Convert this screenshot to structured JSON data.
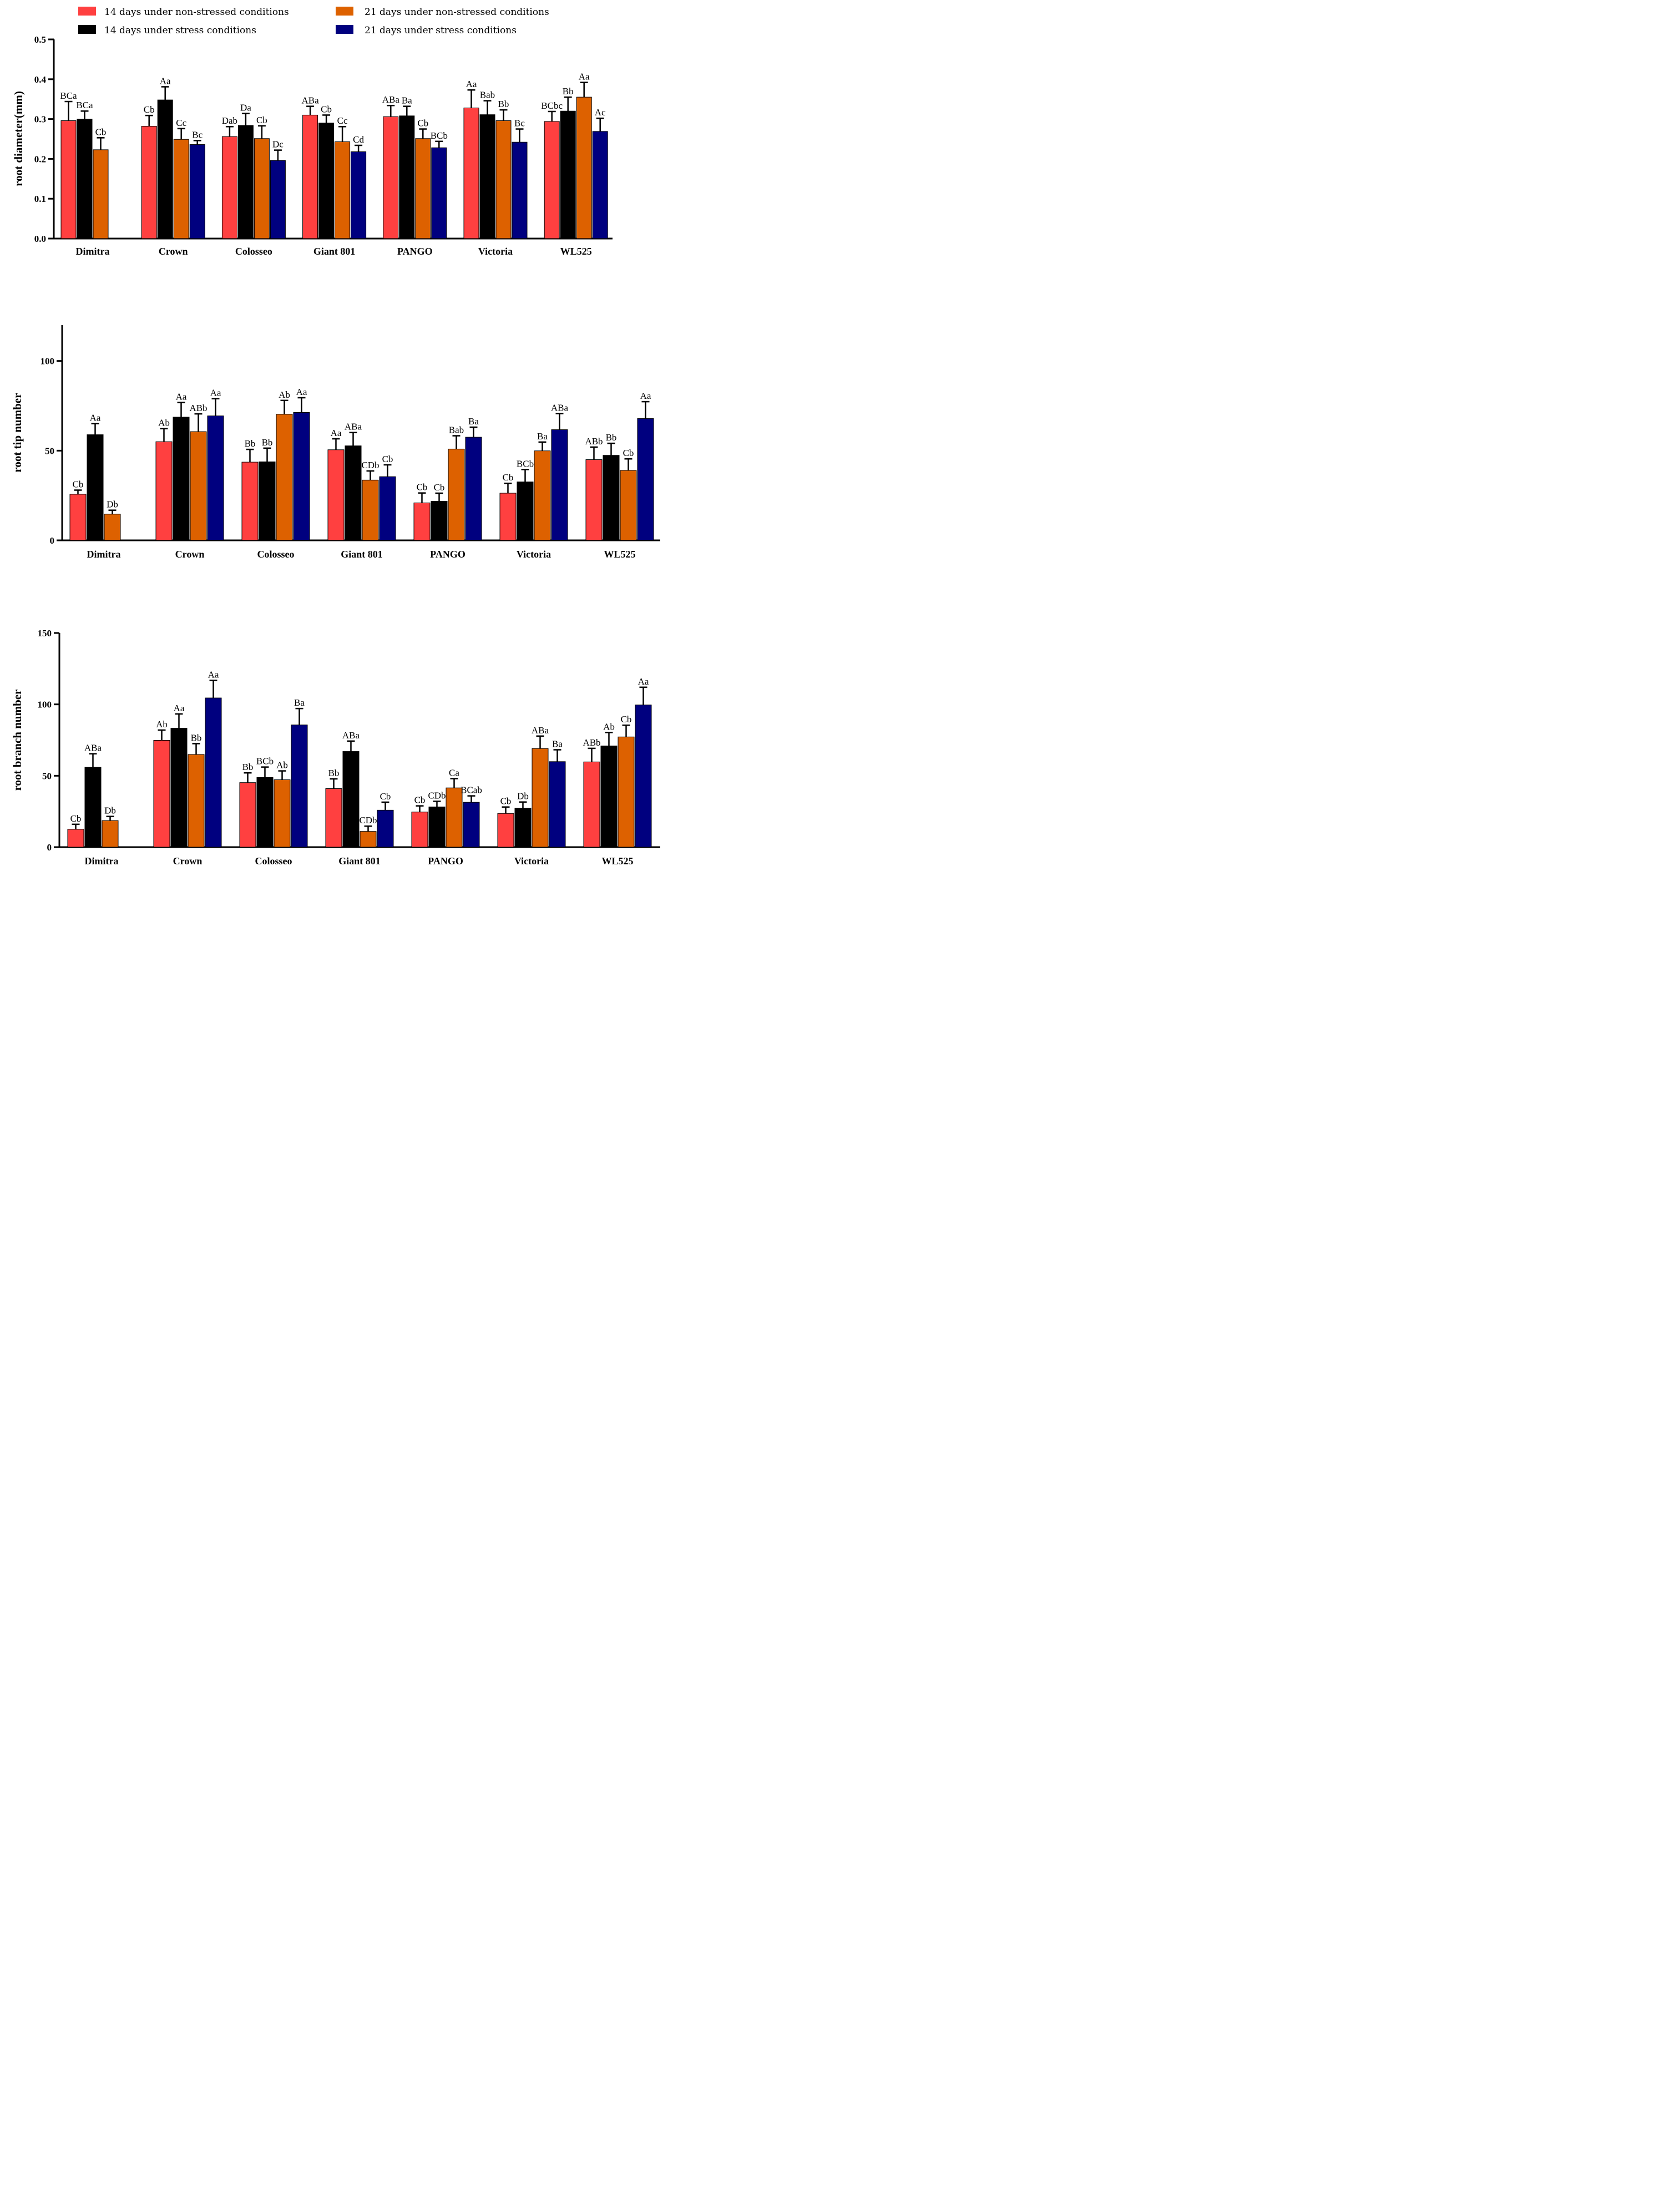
{
  "legend": [
    {
      "label": "14 days under non-stressed conditions",
      "color": "#ff4040"
    },
    {
      "label": "21 days under non-stressed conditions",
      "color": "#dd6100"
    },
    {
      "label": "14 days under stress conditions",
      "color": "#000000"
    },
    {
      "label": "21 days under stress conditions",
      "color": "#00007f"
    }
  ],
  "chart_data": [
    {
      "type": "bar",
      "title": "",
      "xlabel": "",
      "ylabel": "root diameter(mm)",
      "ylim": [
        0,
        0.5
      ],
      "yticks": [
        "0.0",
        "0.1",
        "0.2",
        "0.3",
        "0.4",
        "0.5"
      ],
      "categories": [
        "Dimitra",
        "Crown",
        "Colosseo",
        "Giant 801",
        "PANGO",
        "Victoria",
        "WL525"
      ],
      "series": [
        {
          "name": "14 days under non-stressed conditions",
          "color": "#ff4040",
          "values": [
            0.296,
            0.282,
            0.256,
            0.31,
            0.306,
            0.328,
            0.294
          ],
          "errors": [
            0.048,
            0.027,
            0.025,
            0.022,
            0.028,
            0.045,
            0.025
          ],
          "labels": [
            "BCa",
            "Cb",
            "Dab",
            "ABa",
            "ABa",
            "Aa",
            "BCbc"
          ]
        },
        {
          "name": "14 days under stress conditions",
          "color": "#000000",
          "values": [
            0.3,
            0.348,
            0.284,
            0.29,
            0.308,
            0.311,
            0.32
          ],
          "errors": [
            0.02,
            0.033,
            0.03,
            0.02,
            0.024,
            0.035,
            0.035
          ],
          "labels": [
            "BCa",
            "Aa",
            "Da",
            "Cb",
            "Ba",
            "Bab",
            "Bb"
          ]
        },
        {
          "name": "21 days under non-stressed conditions",
          "color": "#dd6100",
          "values": [
            0.223,
            0.249,
            0.251,
            0.243,
            0.251,
            0.296,
            0.355
          ],
          "errors": [
            0.03,
            0.027,
            0.032,
            0.038,
            0.024,
            0.027,
            0.037
          ],
          "labels": [
            "Cb",
            "Cc",
            "Cb",
            "Cc",
            "Cb",
            "Bb",
            "Aa"
          ]
        },
        {
          "name": "21 days under stress conditions",
          "color": "#00007f",
          "values": [
            null,
            0.236,
            0.196,
            0.218,
            0.228,
            0.242,
            0.269
          ],
          "errors": [
            null,
            0.01,
            0.026,
            0.016,
            0.016,
            0.033,
            0.033
          ],
          "labels": [
            "",
            "Bc",
            "Dc",
            "Cd",
            "BCb",
            "Bc",
            "Ac"
          ]
        }
      ]
    },
    {
      "type": "bar",
      "title": "",
      "xlabel": "",
      "ylabel": "root tip number",
      "ylim": [
        0,
        120
      ],
      "yticks": [
        "0",
        "50",
        "100"
      ],
      "categories": [
        "Dimitra",
        "Crown",
        "Colosseo",
        "Giant 801",
        "PANGO",
        "Victoria",
        "WL525"
      ],
      "series": [
        {
          "name": "14 days under non-stressed conditions",
          "color": "#ff4040",
          "values": [
            25.7,
            55,
            43.6,
            50.5,
            20.9,
            26.3,
            45
          ],
          "errors": [
            2.3,
            7.3,
            7.1,
            6.1,
            5.5,
            5.5,
            7
          ],
          "labels": [
            "Cb",
            "Ab",
            "Bb",
            "Aa",
            "Cb",
            "Cb",
            "ABb"
          ]
        },
        {
          "name": "14 days under stress conditions",
          "color": "#000000",
          "values": [
            58.9,
            68.7,
            43.8,
            52.7,
            21.8,
            32.6,
            47.4
          ],
          "errors": [
            6.2,
            8.2,
            7.6,
            7.4,
            4.5,
            6.9,
            6.7
          ],
          "labels": [
            "Aa",
            "Aa",
            "Bb",
            "ABa",
            "Cb",
            "BCb",
            "Bb"
          ]
        },
        {
          "name": "21 days under non-stressed conditions",
          "color": "#dd6100",
          "values": [
            14.6,
            60.6,
            70.3,
            33.6,
            50.9,
            49.9,
            39
          ],
          "errors": [
            2.2,
            9.9,
            7.7,
            5.1,
            7.4,
            4.9,
            6.4
          ],
          "labels": [
            "Db",
            "ABb",
            "Ab",
            "CDb",
            "Bab",
            "Ba",
            "Cb"
          ]
        },
        {
          "name": "21 days under stress conditions",
          "color": "#00007f",
          "values": [
            null,
            69.4,
            71.3,
            35.5,
            57.5,
            61.7,
            67.9
          ],
          "errors": [
            null,
            9.6,
            8.2,
            6.6,
            5.6,
            9,
            9.4
          ],
          "labels": [
            "",
            "Aa",
            "Aa",
            "Cb",
            "Ba",
            "ABa",
            "Aa"
          ]
        }
      ]
    },
    {
      "type": "bar",
      "title": "",
      "xlabel": "",
      "ylabel": "root branch number",
      "ylim": [
        0,
        150
      ],
      "yticks": [
        "0",
        "50",
        "100",
        "150"
      ],
      "categories": [
        "Dimitra",
        "Crown",
        "Colosseo",
        "Giant 801",
        "PANGO",
        "Victoria",
        "WL525"
      ],
      "series": [
        {
          "name": "14 days under non-stressed conditions",
          "color": "#ff4040",
          "values": [
            12.5,
            74.8,
            45.2,
            41,
            24.6,
            23.6,
            59.7
          ],
          "errors": [
            3.5,
            7.2,
            6.8,
            6.8,
            4.3,
            4.5,
            9.5
          ],
          "labels": [
            "Cb",
            "Ab",
            "Bb",
            "Bb",
            "Cb",
            "Cb",
            "ABb"
          ]
        },
        {
          "name": "14 days under stress conditions",
          "color": "#000000",
          "values": [
            55.9,
            83.3,
            48.8,
            67,
            28.2,
            27.3,
            70.9
          ],
          "errors": [
            9.5,
            10,
            7.3,
            7.3,
            3.9,
            4.3,
            9.4
          ],
          "labels": [
            "ABa",
            "Aa",
            "BCb",
            "ABa",
            "CDb",
            "Db",
            "Ab"
          ]
        },
        {
          "name": "21 days under non-stressed conditions",
          "color": "#dd6100",
          "values": [
            18.6,
            64.9,
            47.2,
            11,
            41.5,
            69.1,
            77.2
          ],
          "errors": [
            2.9,
            7.6,
            6.2,
            3.7,
            6.5,
            8.7,
            8.2
          ],
          "labels": [
            "Db",
            "Bb",
            "Ab",
            "CDb",
            "Ca",
            "ABa",
            "Cb"
          ]
        },
        {
          "name": "21 days under stress conditions",
          "color": "#00007f",
          "values": [
            null,
            104.5,
            85.6,
            25.9,
            31.4,
            59.9,
            99.6
          ],
          "errors": [
            null,
            12.3,
            11.5,
            5.6,
            4.5,
            8.3,
            12.4
          ],
          "labels": [
            "",
            "Aa",
            "Ba",
            "Cb",
            "BCab",
            "Ba",
            "Aa"
          ]
        }
      ]
    }
  ]
}
